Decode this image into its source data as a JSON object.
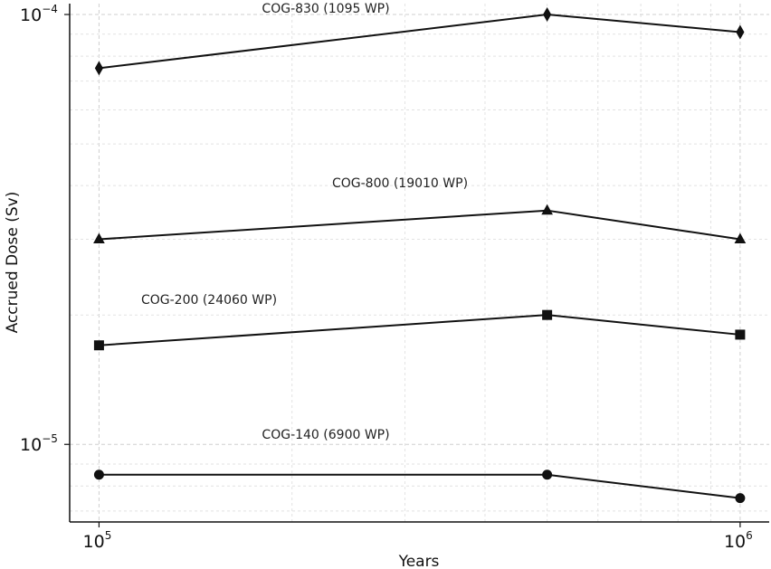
{
  "chart_data": {
    "type": "line",
    "x_scale": "log",
    "y_scale": "log",
    "xlabel": "Years",
    "ylabel": "Accrued Dose (Sv)",
    "xlim": [
      90000,
      1110000
    ],
    "ylim": [
      6.6e-06,
      0.000106
    ],
    "x_ticks": [
      {
        "value": 100000,
        "base": "10",
        "exp": "5"
      },
      {
        "value": 1000000,
        "base": "10",
        "exp": "6"
      }
    ],
    "y_ticks": [
      {
        "value": 1e-05,
        "base": "10",
        "exp": "−5"
      },
      {
        "value": 0.0001,
        "base": "10",
        "exp": "−4"
      }
    ],
    "grid": true,
    "series": [
      {
        "name": "COG-830 (1095 WP)",
        "marker": "diamond",
        "x": [
          100000,
          500000,
          1000000
        ],
        "y": [
          7.5e-05,
          0.0001,
          9.1e-05
        ]
      },
      {
        "name": "COG-800 (19010 WP)",
        "marker": "triangle",
        "x": [
          100000,
          500000,
          1000000
        ],
        "y": [
          3e-05,
          3.5e-05,
          3e-05
        ]
      },
      {
        "name": "COG-200 (24060 WP)",
        "marker": "square",
        "x": [
          100000,
          500000,
          1000000
        ],
        "y": [
          1.7e-05,
          2e-05,
          1.8e-05
        ]
      },
      {
        "name": "COG-140 (6900 WP)",
        "marker": "circle",
        "x": [
          100000,
          500000,
          1000000
        ],
        "y": [
          8.5e-06,
          8.5e-06,
          7.5e-06
        ]
      }
    ]
  }
}
